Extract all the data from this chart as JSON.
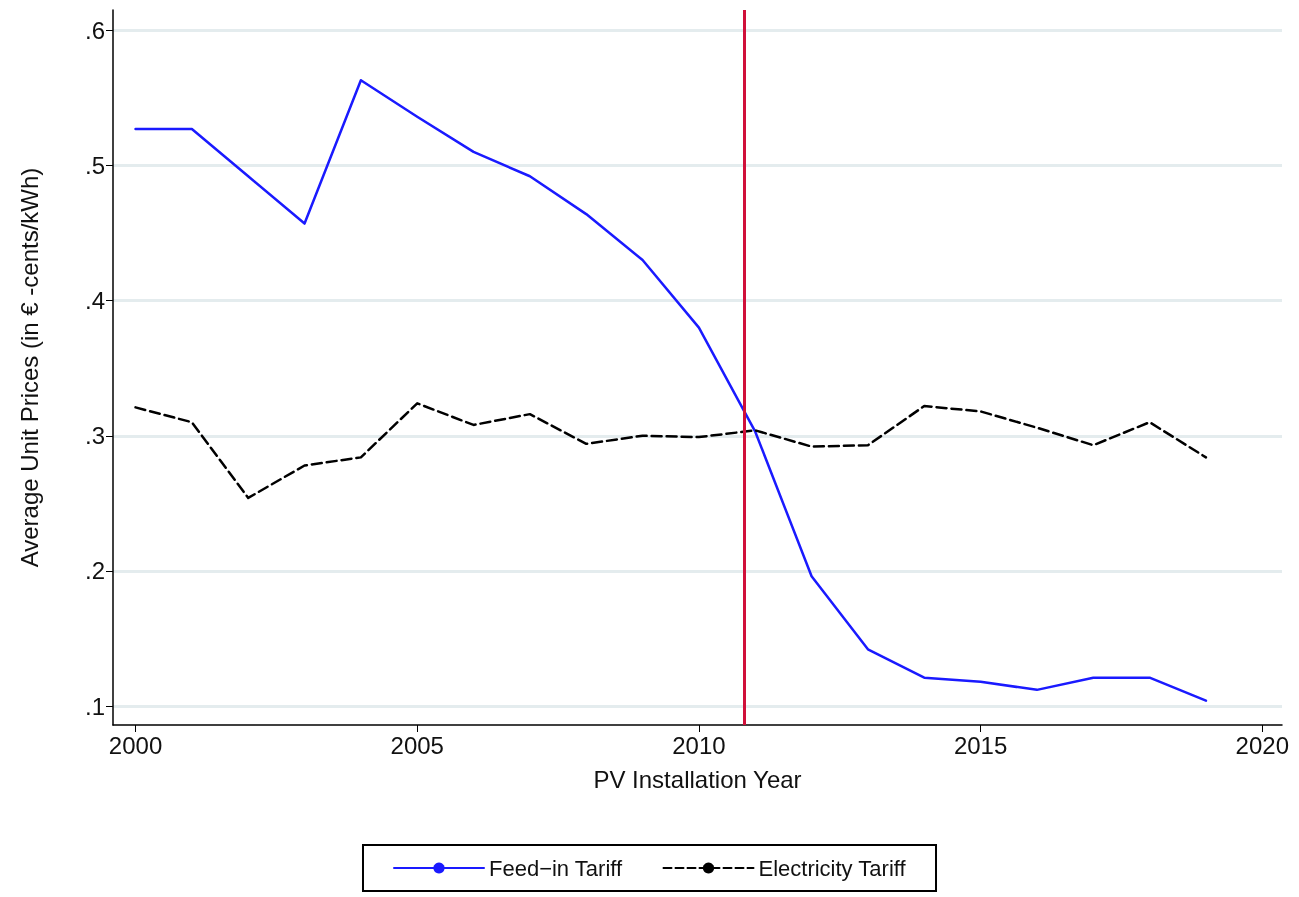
{
  "chart_data": {
    "type": "line",
    "xlabel": "PV Installation Year",
    "ylabel": "Average Unit Prices (in € -cents/kWh)",
    "x": [
      2000,
      2001,
      2002,
      2003,
      2004,
      2005,
      2006,
      2007,
      2008,
      2009,
      2010,
      2011,
      2012,
      2013,
      2014,
      2015,
      2016,
      2017,
      2018,
      2019
    ],
    "series": [
      {
        "name": "Feed−in Tariff",
        "color": "#1a1aff",
        "line_style": "solid",
        "values": [
          0.527,
          0.527,
          0.492,
          0.457,
          0.563,
          0.536,
          0.51,
          0.492,
          0.464,
          0.43,
          0.38,
          0.303,
          0.196,
          0.142,
          0.121,
          0.118,
          0.112,
          0.121,
          0.121,
          0.104
        ]
      },
      {
        "name": "Electricity Tariff",
        "color": "#000000",
        "line_style": "dashed",
        "values": [
          0.321,
          0.31,
          0.254,
          0.278,
          0.284,
          0.324,
          0.308,
          0.316,
          0.294,
          0.3,
          0.299,
          0.304,
          0.292,
          0.293,
          0.322,
          0.318,
          0.306,
          0.293,
          0.31,
          0.284
        ]
      }
    ],
    "ref_lines": [
      {
        "axis": "x",
        "value": 2010.8,
        "color": "#d0103a"
      }
    ],
    "xlim": [
      1999.6,
      2020.35
    ],
    "xticks": [
      2000,
      2005,
      2010,
      2015,
      2020
    ],
    "ylim": [
      0.086,
      0.615
    ],
    "yticks": [
      {
        "value": 0.1,
        "label": ".1"
      },
      {
        "value": 0.2,
        "label": ".2"
      },
      {
        "value": 0.3,
        "label": ".3"
      },
      {
        "value": 0.4,
        "label": ".4"
      },
      {
        "value": 0.5,
        "label": ".5"
      },
      {
        "value": 0.6,
        "label": ".6"
      }
    ],
    "grid": "y",
    "legend": "bottom",
    "marker": "none"
  }
}
